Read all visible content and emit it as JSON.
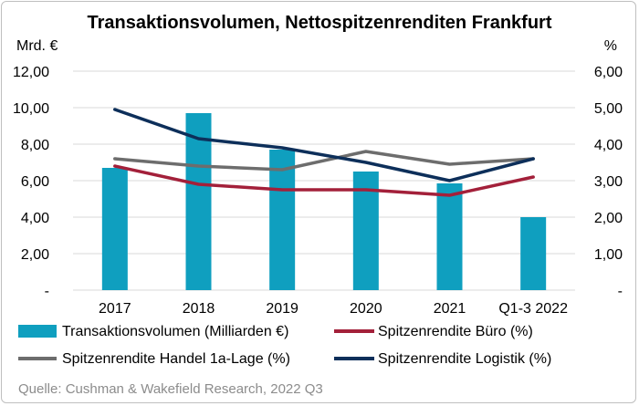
{
  "chart_data": {
    "type": "bar+line",
    "title": "Transaktionsvolumen, Nettospitzenrenditen Frankfurt",
    "left_unit": "Mrd. €",
    "right_unit": "%",
    "categories": [
      "2017",
      "2018",
      "2019",
      "2020",
      "2021",
      "Q1-3 2022"
    ],
    "left_axis": {
      "range": [
        0,
        12
      ],
      "ticks": [
        0,
        2,
        4,
        6,
        8,
        10,
        12
      ],
      "tick_labels": [
        "-",
        "2,00",
        "4,00",
        "6,00",
        "8,00",
        "10,00",
        "12,00"
      ]
    },
    "right_axis": {
      "range": [
        0,
        6
      ],
      "ticks": [
        0,
        1,
        2,
        3,
        4,
        5,
        6
      ],
      "tick_labels": [
        "-",
        "1,00",
        "2,00",
        "3,00",
        "4,00",
        "5,00",
        "6,00"
      ]
    },
    "bar_series": {
      "name": "Transaktionsvolumen (Milliarden €)",
      "color": "#0f9fbf",
      "axis": "left",
      "values": [
        6.7,
        9.7,
        7.7,
        6.5,
        5.85,
        4.0
      ]
    },
    "line_series": [
      {
        "name": "Spitzenrendite Büro (%)",
        "color": "#a3203a",
        "axis": "right",
        "values": [
          3.4,
          2.9,
          2.75,
          2.75,
          2.6,
          3.1
        ]
      },
      {
        "name": "Spitzenrendite Handel 1a-Lage (%)",
        "color": "#6d6d6d",
        "axis": "right",
        "values": [
          3.6,
          3.4,
          3.3,
          3.8,
          3.45,
          3.6
        ]
      },
      {
        "name": "Spitzenrendite Logistik (%)",
        "color": "#0d2f5a",
        "axis": "right",
        "values": [
          4.95,
          4.15,
          3.9,
          3.5,
          3.0,
          3.6
        ]
      }
    ],
    "grid": "horizontal",
    "legend_position": "bottom",
    "source": "Quelle: Cushman & Wakefield Research, 2022 Q3"
  }
}
